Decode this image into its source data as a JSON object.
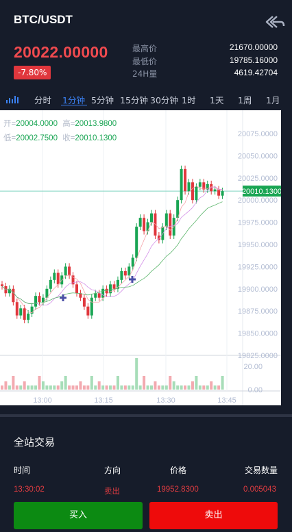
{
  "header": {
    "title": "BTC/USDT"
  },
  "ticker": {
    "price": "20022.00000",
    "change": "-7.80%"
  },
  "stats": [
    {
      "label": "最高价",
      "value": "21670.00000"
    },
    {
      "label": "最低价",
      "value": "19785.16000"
    },
    {
      "label": "24H量",
      "value": "4619.42704"
    }
  ],
  "tabs": [
    "分时",
    "1分钟",
    "5分钟",
    "15分钟",
    "30分钟",
    "1时",
    "1天",
    "1周",
    "1月"
  ],
  "active_tab": "1分钟",
  "ohlc": {
    "open_label": "开=",
    "open": "20004.0000",
    "high_label": "高=",
    "high": "20013.9800",
    "low_label": "低=",
    "low": "20002.7500",
    "close_label": "收=",
    "close": "20010.1300"
  },
  "chart_data": {
    "type": "candlestick",
    "price_ticks": [
      "20075.0000",
      "20050.0000",
      "20025.0000",
      "20000.0000",
      "19975.0000",
      "19950.0000",
      "19925.0000",
      "19900.0000",
      "19875.0000",
      "19850.0000",
      "19825.0000"
    ],
    "current_price_label": "20010.1300",
    "volume_ticks": [
      "20.00",
      "0.00"
    ],
    "time_ticks": [
      "13:00",
      "13:15",
      "13:30",
      "13:45"
    ]
  },
  "trades": {
    "title": "全站交易",
    "headers": {
      "time": "时间",
      "direction": "方向",
      "price": "价格",
      "amount": "交易数量"
    },
    "rows": [
      {
        "time": "13:30:02",
        "direction": "卖出",
        "price": "19952.8300",
        "amount": "0.005043"
      }
    ]
  },
  "actions": {
    "buy": "买入",
    "sell": "卖出"
  },
  "colors": {
    "background": "#161c2a",
    "up": "#19a553",
    "down": "#e0373d",
    "accent": "#3b82f6",
    "buy": "#0c8a12",
    "sell": "#ee0b0b"
  }
}
